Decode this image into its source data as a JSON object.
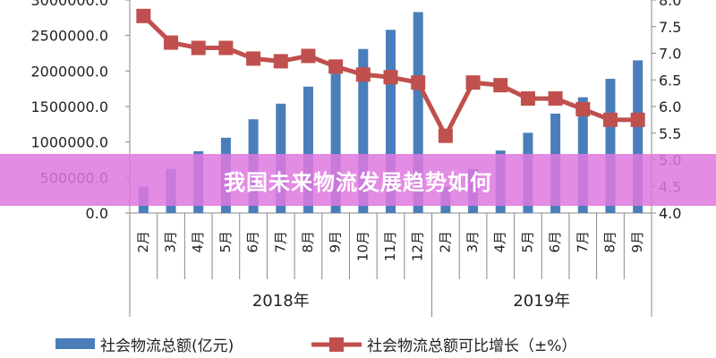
{
  "banner": {
    "title": "我国未来物流发展趋势如何"
  },
  "chart_data": {
    "type": "bar+line",
    "categories": [
      "2月",
      "3月",
      "4月",
      "5月",
      "6月",
      "7月",
      "8月",
      "9月",
      "10月",
      "11月",
      "12月",
      "2月",
      "3月",
      "4月",
      "5月",
      "6月",
      "7月",
      "8月",
      "9月"
    ],
    "groups": [
      {
        "label": "2018年",
        "count": 11
      },
      {
        "label": "2019年",
        "count": 8
      }
    ],
    "series": [
      {
        "name": "社会物流总额(亿元)",
        "type": "bar",
        "axis": "left",
        "color": "#4a7ebb",
        "values": [
          370000,
          620000,
          870000,
          1060000,
          1320000,
          1540000,
          1780000,
          2050000,
          2310000,
          2580000,
          2830000,
          370000,
          620000,
          880000,
          1130000,
          1400000,
          1630000,
          1890000,
          2150000
        ]
      },
      {
        "name": "社会物流总额可比增长（±%）",
        "type": "line",
        "axis": "right",
        "color": "#c0504d",
        "values": [
          7.7,
          7.2,
          7.1,
          7.1,
          6.9,
          6.85,
          6.95,
          6.75,
          6.6,
          6.55,
          6.45,
          5.45,
          6.45,
          6.4,
          6.15,
          6.15,
          5.95,
          5.75,
          5.75
        ]
      }
    ],
    "left_axis": {
      "min": 0,
      "max": 3000000,
      "step": 500000,
      "tick_labels": [
        "0.0",
        "500000.0",
        "1000000.0",
        "1500000.0",
        "2000000.0",
        "2500000.0",
        "3000000.0"
      ]
    },
    "right_axis": {
      "min": 4.0,
      "max": 8.0,
      "step": 0.5,
      "tick_labels": [
        "4.0",
        "4.5",
        "5.0",
        "5.5",
        "6.0",
        "6.5",
        "7.0",
        "7.5",
        "8.0"
      ]
    },
    "grid": false,
    "legend_position": "bottom"
  }
}
